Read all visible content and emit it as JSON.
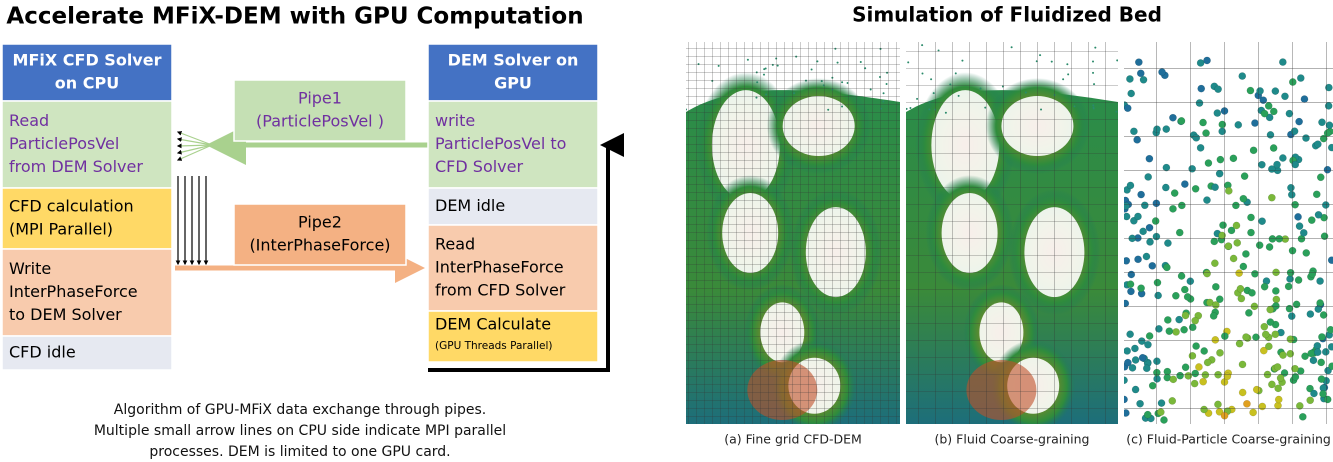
{
  "left": {
    "title": "Accelerate MFiX-DEM with GPU Computation",
    "cpu": {
      "header": [
        "MFiX CFD Solver",
        "on CPU"
      ],
      "blocks": [
        [
          "Read",
          "ParticlePosVel",
          "from DEM Solver"
        ],
        [
          "CFD calculation",
          "(MPI Parallel)"
        ],
        [
          "Write",
          "InterPhaseForce",
          "to DEM Solver"
        ],
        [
          "CFD idle"
        ]
      ]
    },
    "gpu": {
      "header": [
        "DEM Solver on",
        "GPU"
      ],
      "blocks": [
        [
          "write",
          "ParticlePosVel to",
          "CFD Solver"
        ],
        [
          "DEM idle"
        ],
        [
          "Read",
          "InterPhaseForce",
          "from CFD Solver"
        ],
        [
          "DEM Calculate",
          "(GPU Threads Parallel)"
        ]
      ]
    },
    "pipes": [
      [
        "Pipe1",
        "(ParticlePosVel )"
      ],
      [
        "Pipe2",
        "(InterPhaseForce)"
      ]
    ],
    "caption": [
      "Algorithm of GPU-MFiX data exchange through pipes.",
      "Multiple small arrow lines on CPU side indicate MPI parallel",
      "processes. DEM is limited to one GPU card."
    ]
  },
  "right": {
    "title": "Simulation of Fluidized Bed",
    "panels": [
      "(a) Fine grid CFD-DEM",
      "(b) Fluid Coarse-graining",
      "(c) Fluid-Particle Coarse-graining"
    ]
  }
}
